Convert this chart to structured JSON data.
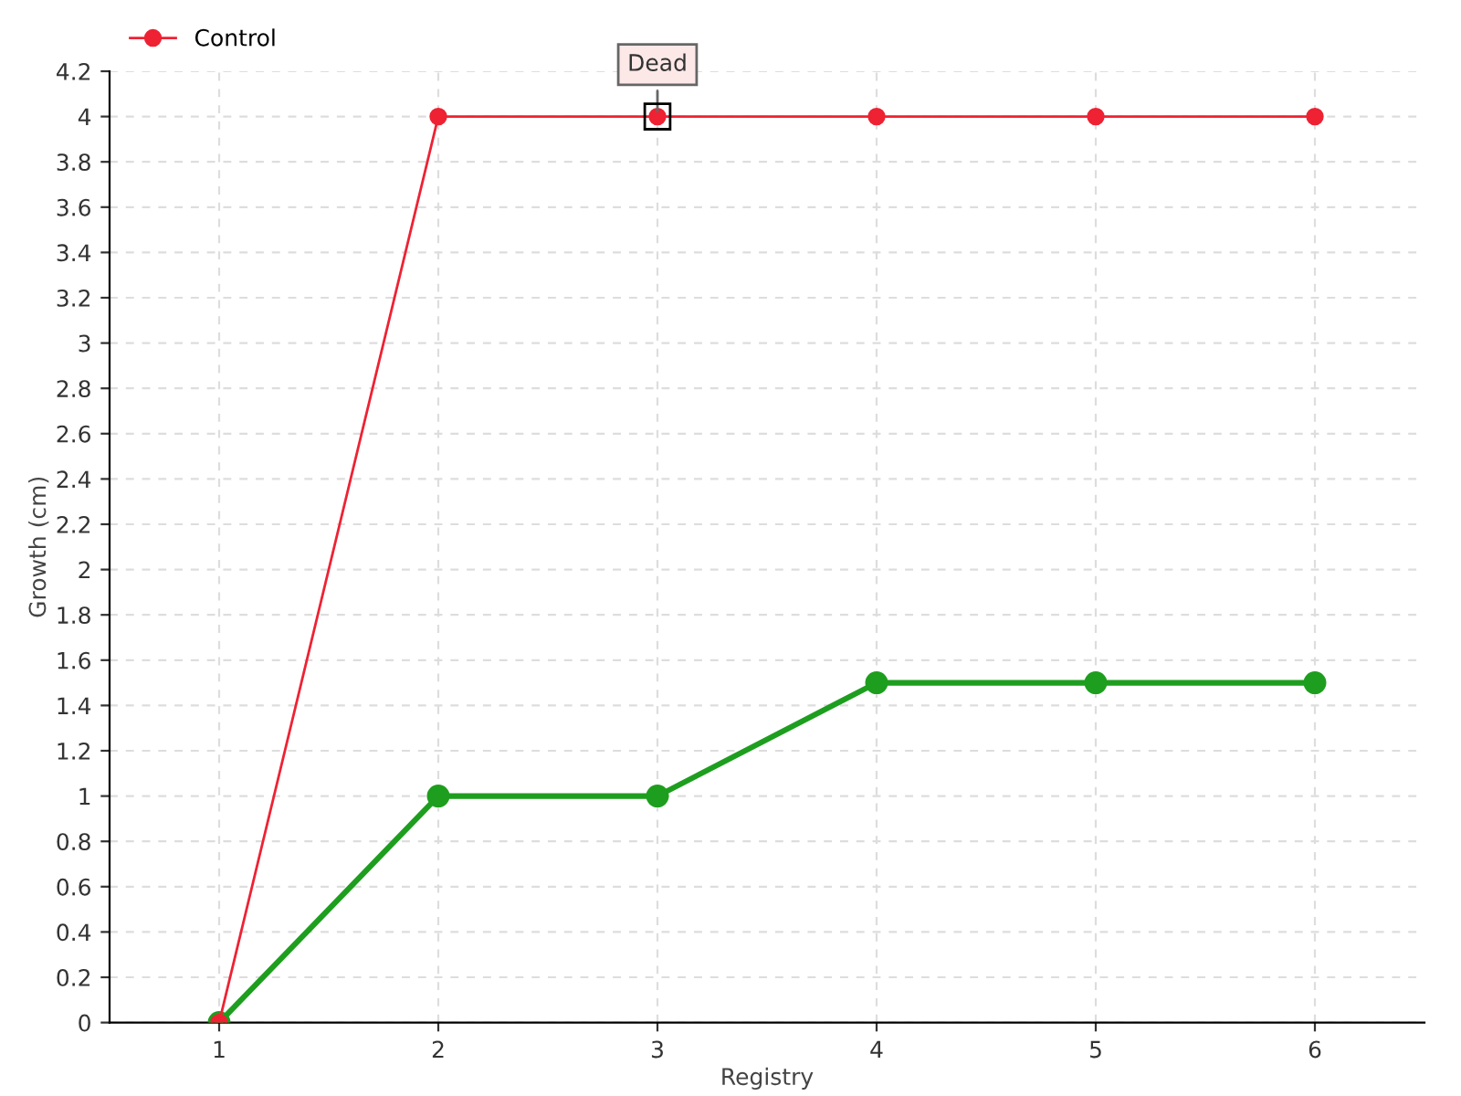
{
  "chart_data": {
    "type": "line",
    "xlabel": "Registry",
    "ylabel": "Growth (cm)",
    "x": [
      1,
      2,
      3,
      4,
      5,
      6
    ],
    "series": [
      {
        "color": "#1e9e1e",
        "values": [
          0,
          1,
          1,
          1.5,
          1.5,
          1.5
        ]
      },
      {
        "name": "Control",
        "color": "#ee2233",
        "values": [
          0,
          4,
          4,
          4,
          4,
          4
        ]
      }
    ],
    "xlim": [
      0.5,
      6.5
    ],
    "xticks": [
      1,
      2,
      3,
      4,
      5,
      6
    ],
    "ylim": [
      0,
      4.2
    ],
    "yticks": [
      0,
      0.2,
      0.4,
      0.6,
      0.8,
      1,
      1.2,
      1.4,
      1.6,
      1.8,
      2,
      2.2,
      2.4,
      2.6,
      2.8,
      3,
      3.2,
      3.4,
      3.6,
      3.8,
      4,
      4.2
    ],
    "annotations": [
      {
        "text": "Dead",
        "x": 3,
        "y": 4
      }
    ],
    "grid": true,
    "legend": "top left",
    "marker": "circle",
    "line_style": "solid"
  }
}
